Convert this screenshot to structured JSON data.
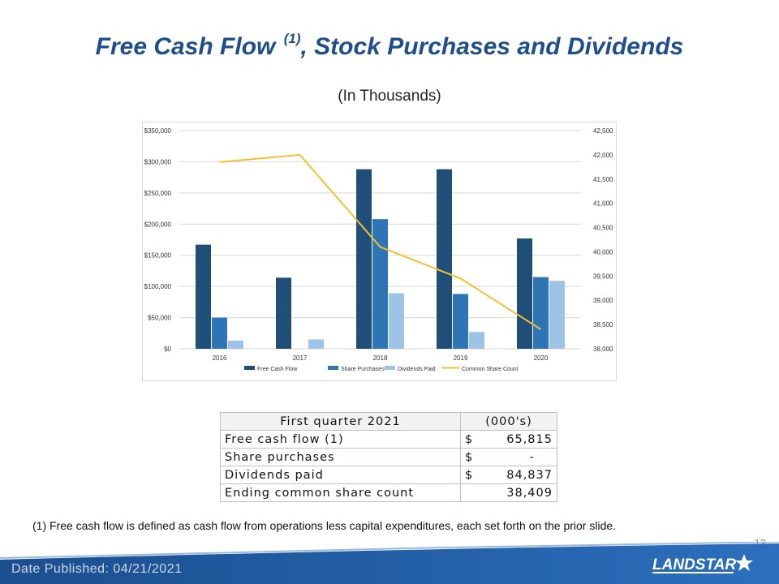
{
  "slide": {
    "title_main": "Free Cash Flow",
    "title_sup": "(1)",
    "title_rest": ", Stock Purchases and Dividends",
    "subtitle": "(In Thousands)",
    "footnote": "(1)  Free cash flow is defined as cash flow from operations less capital expenditures, each set forth on the prior slide.",
    "page_number": "13",
    "date_published": "Date Published:  04/21/2021",
    "logo_text": "LANDSTAR"
  },
  "colors": {
    "title": "#1f4e8c",
    "free_cash_flow": "#1f4e79",
    "share_purchases": "#2e75b6",
    "dividends_paid": "#9dc3e6",
    "common_share_count": "#f2c12e",
    "footer_blue": "#1b4f8f"
  },
  "table": {
    "header": {
      "label": "First quarter 2021",
      "unit": "(000's)"
    },
    "rows": [
      {
        "label": "Free cash flow (1)",
        "dollar": "$",
        "value": "65,815"
      },
      {
        "label": "Share purchases",
        "dollar": "$",
        "value": "-"
      },
      {
        "label": "Dividends paid",
        "dollar": "$",
        "value": "84,837"
      },
      {
        "label": "Ending common share count",
        "dollar": "",
        "value": "38,409"
      }
    ]
  },
  "chart_data": {
    "type": "bar",
    "categories": [
      "2016",
      "2017",
      "2018",
      "2019",
      "2020"
    ],
    "series": [
      {
        "name": "Free Cash Flow",
        "type": "bar",
        "axis": "left",
        "values": [
          167000,
          114000,
          288000,
          288000,
          177000
        ]
      },
      {
        "name": "Share Purchases",
        "type": "bar",
        "axis": "left",
        "values": [
          50000,
          0,
          208000,
          88000,
          115000
        ]
      },
      {
        "name": "Dividends Paid",
        "type": "bar",
        "axis": "left",
        "values": [
          13000,
          15000,
          89000,
          27000,
          109000
        ]
      },
      {
        "name": "Common Share Count",
        "type": "line",
        "axis": "right",
        "values": [
          41850,
          42000,
          40100,
          39450,
          38400
        ]
      }
    ],
    "ylim_left": [
      0,
      350000
    ],
    "ylim_right": [
      38000,
      42500
    ],
    "yticks_left": [
      "$0",
      "$50,000",
      "$100,000",
      "$150,000",
      "$200,000",
      "$250,000",
      "$300,000",
      "$350,000"
    ],
    "yticks_right": [
      "38,000",
      "38,500",
      "39,000",
      "39,500",
      "40,000",
      "40,500",
      "41,000",
      "41,500",
      "42,000",
      "42,500"
    ],
    "grid": true,
    "legend_position": "bottom"
  }
}
